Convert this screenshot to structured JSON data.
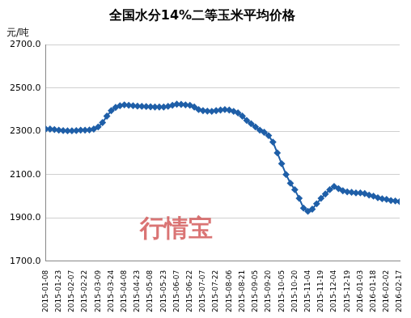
{
  "chart_data": {
    "type": "line",
    "title": "全国水分14%二等玉米平均价格",
    "y_label": "元/吨",
    "annotations": [
      "行情宝"
    ],
    "categories": [
      "2015-01-08",
      null,
      null,
      "2015-01-23",
      null,
      null,
      "2015-02-07",
      null,
      null,
      "2015-02-22",
      null,
      null,
      "2015-03-09",
      null,
      null,
      "2015-03-24",
      null,
      null,
      "2015-04-08",
      null,
      null,
      "2015-04-23",
      null,
      null,
      "2015-05-08",
      null,
      null,
      "2015-05-23",
      null,
      null,
      "2015-06-07",
      null,
      null,
      "2015-06-22",
      null,
      null,
      "2015-07-07",
      null,
      null,
      "2015-07-22",
      null,
      null,
      "2015-08-06",
      null,
      null,
      "2015-08-21",
      null,
      null,
      "2015-09-05",
      null,
      null,
      "2015-09-20",
      null,
      null,
      "2015-10-05",
      null,
      null,
      "2015-10-20",
      null,
      null,
      "2015-11-04",
      null,
      null,
      "2015-11-19",
      null,
      null,
      "2015-12-04",
      null,
      null,
      "2015-12-19",
      null,
      null,
      "2016-01-03",
      null,
      null,
      "2016-01-18",
      null,
      null,
      "2016-02-02",
      null,
      null,
      "2016-02-17"
    ],
    "values": [
      2310,
      2310,
      2308,
      2305,
      2303,
      2302,
      2302,
      2303,
      2305,
      2305,
      2306,
      2310,
      2320,
      2340,
      2370,
      2395,
      2410,
      2418,
      2422,
      2420,
      2418,
      2416,
      2415,
      2414,
      2413,
      2412,
      2412,
      2412,
      2415,
      2420,
      2425,
      2424,
      2422,
      2420,
      2412,
      2400,
      2395,
      2393,
      2392,
      2395,
      2398,
      2400,
      2398,
      2392,
      2385,
      2370,
      2350,
      2335,
      2320,
      2305,
      2295,
      2280,
      2250,
      2200,
      2150,
      2100,
      2060,
      2030,
      1990,
      1945,
      1930,
      1940,
      1965,
      1990,
      2010,
      2030,
      2045,
      2035,
      2025,
      2020,
      2018,
      2015,
      2015,
      2012,
      2005,
      2000,
      1993,
      1988,
      1985,
      1980,
      1978,
      1975
    ],
    "color": "#1f5fa8",
    "marker": "diamond",
    "ylim": [
      1700,
      2700
    ],
    "yticks": [
      {
        "value": 1700,
        "label": "1700.0"
      },
      {
        "value": 1900,
        "label": "1900.0"
      },
      {
        "value": 2100,
        "label": "2100.0"
      },
      {
        "value": 2300,
        "label": "2300.0"
      },
      {
        "value": 2500,
        "label": "2500.0"
      },
      {
        "value": 2700,
        "label": "2700.0"
      }
    ],
    "grid": true
  }
}
